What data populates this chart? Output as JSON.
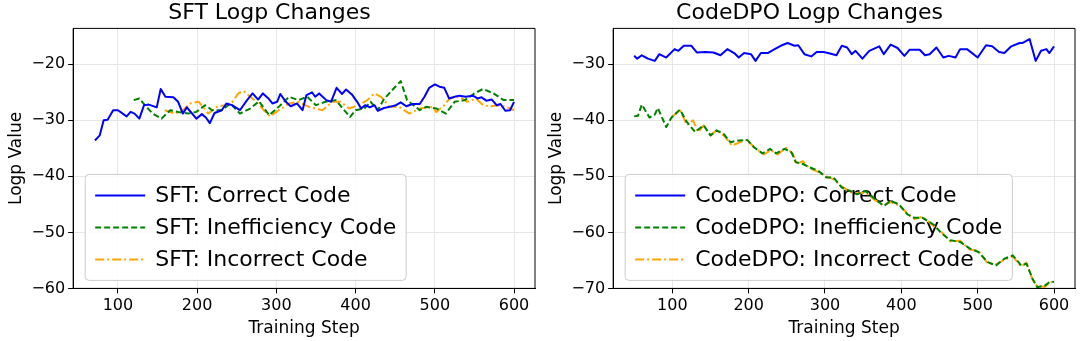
{
  "chart_data": [
    {
      "type": "line",
      "title": "SFT Logp Changes",
      "xlabel": "Training Step",
      "ylabel": "Logp Value",
      "xlim": [
        43.5,
        626.5
      ],
      "ylim": [
        -60,
        -13.6
      ],
      "xticks": [
        100,
        200,
        300,
        400,
        500,
        600
      ],
      "yticks": [
        -60,
        -50,
        -40,
        -30,
        -20
      ],
      "grid": true,
      "legend": "bottom left",
      "marker": "none",
      "series": [
        {
          "name": "SFT: Correct Code",
          "color": "#0000ff",
          "line_style": "solid",
          "x": [
            71,
            77,
            82,
            87,
            94,
            100,
            111,
            116,
            121,
            127,
            133,
            139,
            149,
            154,
            160,
            170,
            176,
            182,
            187,
            193,
            199,
            206,
            211,
            216,
            222,
            231,
            237,
            244,
            254,
            263,
            270,
            277,
            283,
            290,
            295,
            301,
            305,
            312,
            318,
            326,
            333,
            338,
            345,
            349,
            354,
            363,
            369,
            376,
            383,
            388,
            396,
            402,
            407,
            412,
            418,
            424,
            428,
            436,
            443,
            451,
            457,
            464,
            472,
            481,
            487,
            493,
            500,
            506,
            512,
            518,
            525,
            531,
            539,
            548,
            554,
            559,
            565,
            572,
            578,
            583,
            589,
            595,
            600
          ],
          "values": [
            -33.6,
            -32.7,
            -30,
            -29.9,
            -28.2,
            -28.2,
            -29.3,
            -28.5,
            -28.8,
            -29.7,
            -27.3,
            -27.2,
            -27.7,
            -24.4,
            -25.8,
            -25.9,
            -26.7,
            -28.8,
            -27.7,
            -28.7,
            -29.7,
            -28.9,
            -29.5,
            -30.5,
            -28.7,
            -28.2,
            -27,
            -27.3,
            -28.2,
            -26.4,
            -25.2,
            -26.3,
            -25.2,
            -26.1,
            -27,
            -26.7,
            -25.3,
            -26.7,
            -27.5,
            -27,
            -28.2,
            -25.5,
            -25,
            -25.8,
            -25.2,
            -26.4,
            -26.7,
            -24.2,
            -25.3,
            -24.5,
            -25.5,
            -26.7,
            -27.9,
            -27.3,
            -27.7,
            -27.3,
            -28.3,
            -27.8,
            -27.6,
            -27.3,
            -26.8,
            -27.5,
            -27.1,
            -27.1,
            -25.8,
            -24.2,
            -23.6,
            -24,
            -24.2,
            -26.1,
            -25.8,
            -25.6,
            -25.8,
            -25.6,
            -26.1,
            -25.9,
            -26.5,
            -26.3,
            -27.3,
            -27.1,
            -28.3,
            -28.2,
            -26.7
          ]
        },
        {
          "name": "SFT: Inefficiency Code",
          "color": "#008000",
          "line_style": "dashed",
          "x": [
            120,
            127,
            134,
            144,
            155,
            166,
            176,
            189,
            199,
            210,
            219,
            231,
            242,
            254,
            267,
            278,
            291,
            303,
            316,
            328,
            339,
            350,
            362,
            375,
            384,
            393,
            400,
            411,
            419,
            428,
            436,
            447,
            457,
            465,
            481,
            489,
            502,
            514,
            525,
            538,
            550,
            561,
            574,
            587,
            600
          ],
          "values": [
            -26.4,
            -26.1,
            -27.3,
            -28.8,
            -29.7,
            -28.2,
            -28.5,
            -28.8,
            -28.5,
            -27.3,
            -28.2,
            -28.2,
            -27,
            -28.8,
            -27.9,
            -26.6,
            -29.1,
            -27.6,
            -25.8,
            -26.4,
            -25.8,
            -27.3,
            -26.7,
            -26.4,
            -27.9,
            -29.4,
            -28.2,
            -27.9,
            -26.7,
            -28.2,
            -26.2,
            -24.5,
            -23,
            -26.4,
            -28.2,
            -27.6,
            -27.9,
            -28.8,
            -26.7,
            -26.4,
            -25.2,
            -24.4,
            -25.2,
            -26.4,
            -26.4
          ]
        },
        {
          "name": "SFT: Incorrect Code",
          "color": "#ffa500",
          "line_style": "dashdot",
          "x": [
            159,
            172,
            182,
            191,
            202,
            214,
            225,
            235,
            244,
            252,
            259,
            267,
            278,
            284,
            292,
            303,
            316,
            328,
            341,
            358,
            371,
            381,
            392,
            404,
            415,
            424,
            432,
            443,
            455,
            468,
            481,
            495,
            502,
            512,
            519,
            531,
            541,
            552,
            561,
            569,
            582,
            590,
            600
          ],
          "values": [
            -28.2,
            -28.8,
            -28.2,
            -27,
            -26.7,
            -28.8,
            -27.6,
            -27.3,
            -26.8,
            -25.2,
            -24.8,
            -25.8,
            -27.1,
            -28.2,
            -29.3,
            -28.2,
            -27,
            -26.7,
            -27.6,
            -28.2,
            -26.7,
            -26.7,
            -27.9,
            -27.3,
            -26.4,
            -25.2,
            -25.8,
            -27.6,
            -27.6,
            -28.8,
            -27.9,
            -27.6,
            -28.5,
            -27.3,
            -26.1,
            -25.8,
            -26.7,
            -26.1,
            -27.3,
            -27.5,
            -27.3,
            -27.6,
            -28.2
          ]
        }
      ]
    },
    {
      "type": "line",
      "title": "CodeDPO Logp Changes",
      "xlabel": "Training Step",
      "ylabel": "Logp Value",
      "xlim": [
        22.5,
        627.5
      ],
      "ylim": [
        -70,
        -23.6
      ],
      "xticks": [
        100,
        200,
        300,
        400,
        500,
        600
      ],
      "yticks": [
        -70,
        -60,
        -50,
        -40,
        -30
      ],
      "grid": true,
      "legend": "bottom left",
      "marker": "none",
      "series": [
        {
          "name": "CodeDPO: Correct Code",
          "color": "#0000ff",
          "line_style": "solid",
          "x": [
            50,
            54,
            60,
            68,
            77,
            83,
            92,
            103,
            108,
            115,
            125,
            132,
            143,
            154,
            163,
            172,
            181,
            187,
            194,
            203,
            209,
            216,
            225,
            234,
            242,
            251,
            260,
            265,
            273,
            282,
            289,
            298,
            304,
            315,
            322,
            329,
            335,
            340,
            349,
            358,
            371,
            377,
            386,
            395,
            404,
            411,
            424,
            431,
            437,
            446,
            455,
            462,
            471,
            477,
            486,
            500,
            511,
            519,
            528,
            535,
            544,
            555,
            559,
            568,
            576,
            583,
            590,
            594,
            600
          ],
          "values": [
            -28.5,
            -29,
            -28.4,
            -29,
            -29.4,
            -28.2,
            -28.8,
            -27.3,
            -27.6,
            -26.7,
            -26.7,
            -27.9,
            -27.8,
            -27.9,
            -28.4,
            -27.3,
            -28,
            -28.8,
            -28,
            -28.2,
            -29.4,
            -28,
            -28,
            -27.3,
            -26.7,
            -26.2,
            -26.7,
            -26.6,
            -28.2,
            -28.6,
            -27.8,
            -27.8,
            -28,
            -28.4,
            -26.7,
            -27,
            -28.2,
            -27.6,
            -29,
            -27.6,
            -26.8,
            -28.2,
            -26.5,
            -27.1,
            -28.5,
            -27.4,
            -27.4,
            -28.4,
            -28.2,
            -27,
            -28.8,
            -28.5,
            -28.8,
            -27.3,
            -27.3,
            -28.8,
            -26.6,
            -26.8,
            -27.8,
            -28,
            -26.8,
            -26.2,
            -26.2,
            -25.5,
            -29.4,
            -27.6,
            -27.3,
            -28,
            -26.8
          ]
        },
        {
          "name": "CodeDPO: Inefficiency Code",
          "color": "#008000",
          "line_style": "dashed",
          "x": [
            50,
            55,
            60,
            70,
            77,
            81,
            92,
            99,
            110,
            119,
            130,
            141,
            150,
            158,
            167,
            176,
            187,
            198,
            207,
            218,
            228,
            236,
            247,
            256,
            262,
            271,
            280,
            291,
            302,
            311,
            322,
            333,
            342,
            353,
            366,
            377,
            386,
            397,
            408,
            417,
            428,
            442,
            453,
            464,
            477,
            490,
            501,
            513,
            524,
            535,
            546,
            557,
            564,
            572,
            578,
            588,
            594,
            600
          ],
          "values": [
            -39.3,
            -39.2,
            -37.2,
            -39.5,
            -39,
            -37.8,
            -41.2,
            -39.5,
            -38.1,
            -40.3,
            -42.1,
            -40.9,
            -42.7,
            -41.8,
            -42.4,
            -43.9,
            -43.6,
            -43.5,
            -44.8,
            -45.9,
            -45.1,
            -45.9,
            -45.1,
            -45.7,
            -47.5,
            -47.8,
            -48.4,
            -49,
            -50.2,
            -50.2,
            -52,
            -52.6,
            -53.2,
            -52.6,
            -54.1,
            -55.3,
            -54.4,
            -55,
            -56.8,
            -57.4,
            -57.4,
            -58.6,
            -60.2,
            -61.4,
            -61.7,
            -62.9,
            -63.5,
            -65.3,
            -65.9,
            -64.7,
            -64.1,
            -65.9,
            -65.6,
            -68.3,
            -69.8,
            -69.5,
            -68.9,
            -68.8
          ]
        },
        {
          "name": "CodeDPO: Incorrect Code",
          "color": "#ffa500",
          "line_style": "dashdot",
          "x": [
            99,
            110,
            119,
            127,
            134,
            141,
            150,
            158,
            169,
            178,
            189,
            198,
            207,
            220,
            229,
            238,
            249,
            258,
            262,
            271,
            280,
            291,
            302,
            311,
            322,
            333,
            342,
            353,
            366,
            377,
            386,
            397,
            408,
            417,
            428,
            442,
            453,
            464,
            477,
            490,
            501,
            513,
            524,
            535,
            546,
            557,
            564,
            572,
            578,
            588,
            594,
            600
          ],
          "values": [
            -39.5,
            -38.1,
            -40.9,
            -40,
            -42.1,
            -40.9,
            -42.7,
            -41.8,
            -42.9,
            -44.5,
            -43.9,
            -43.5,
            -44.8,
            -46.1,
            -45.3,
            -46.1,
            -44.9,
            -46,
            -47.8,
            -47.3,
            -48.6,
            -49.2,
            -50,
            -50.5,
            -51.8,
            -52.8,
            -53,
            -52.9,
            -54.3,
            -55.1,
            -54.6,
            -55.2,
            -56.6,
            -57.6,
            -57.2,
            -58.8,
            -60,
            -61.6,
            -61.5,
            -63.1,
            -63.3,
            -65.5,
            -65.7,
            -64.9,
            -64.3,
            -66.1,
            -65.4,
            -68.5,
            -69.6,
            -69.7,
            -69.1,
            -68.6
          ]
        }
      ]
    }
  ]
}
